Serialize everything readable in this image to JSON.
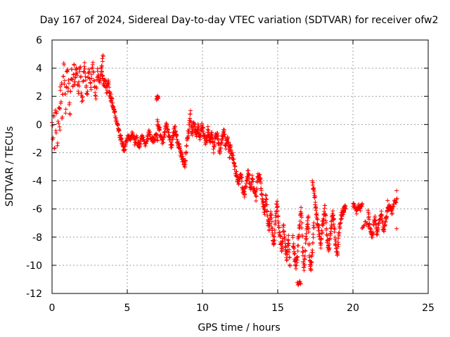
{
  "chart_data": {
    "type": "scatter",
    "title": "Day 167 of 2024, Sidereal Day-to-day VTEC variation (SDTVAR) for receiver ofw2",
    "xlabel": "GPS time / hours",
    "ylabel": "SDTVAR / TECUs",
    "xlim": [
      0,
      25
    ],
    "ylim": [
      -12,
      6
    ],
    "xticks": [
      0,
      5,
      10,
      15,
      20,
      25
    ],
    "yticks": [
      -12,
      -10,
      -8,
      -6,
      -4,
      -2,
      0,
      2,
      4,
      6
    ],
    "xtick_labels": [
      "0",
      "5",
      "10",
      "15",
      "20",
      "25"
    ],
    "ytick_labels": [
      "-12",
      "-10",
      "-8",
      "-6",
      "-4",
      "-2",
      "0",
      "2",
      "4",
      "6"
    ],
    "grid": true,
    "marker": "+",
    "marker_color": "#ff0000",
    "series": [
      {
        "name": "SDTVAR",
        "tracks": [
          {
            "start": 0.0,
            "end": 0.5,
            "step": 0.05,
            "y": [
              0.0,
              -1.0,
              0.5,
              -1.8,
              1.0,
              -0.5,
              0.8,
              -1.5,
              0.2,
              1.2,
              -0.3
            ],
            "spread": 0.4
          },
          {
            "start": 0.5,
            "end": 1.5,
            "step": 0.04,
            "y": [
              1.0,
              2.5,
              1.5,
              3.0,
              0.5,
              2.0,
              3.5,
              4.2,
              3.0,
              2.0,
              1.0,
              2.5,
              3.8,
              4.0,
              2.5,
              3.0,
              1.5,
              0.8,
              2.2,
              3.4,
              4.1,
              3.2,
              2.6,
              3.6,
              4.3,
              3.0
            ],
            "spread": 0.4
          },
          {
            "start": 1.5,
            "end": 3.4,
            "step": 0.04,
            "y": [
              2.8,
              3.5,
              4.2,
              3.0,
              2.2,
              3.8,
              4.0,
              2.0,
              1.5,
              3.2,
              4.3,
              3.6,
              2.8,
              1.8,
              3.4,
              4.1,
              3.0,
              2.5,
              3.9,
              4.4,
              3.2,
              2.6,
              1.7,
              3.0,
              3.8,
              3.5,
              2.9,
              3.3,
              4.0,
              4.6,
              5.1
            ],
            "spread": 0.4
          },
          {
            "start": 3.3,
            "end": 4.8,
            "step": 0.03,
            "y": [
              3.6,
              3.2,
              2.8,
              3.0,
              2.6,
              2.4,
              3.1,
              2.2,
              2.0,
              1.8,
              1.5,
              1.2,
              0.8,
              0.5,
              0.2,
              -0.2,
              -0.5,
              -0.8,
              -1.0,
              -1.3,
              -1.6,
              -1.8
            ],
            "spread": 0.5
          },
          {
            "start": 4.8,
            "end": 7.0,
            "step": 0.04,
            "y": [
              -1.6,
              -1.2,
              -0.8,
              -1.0,
              -0.7,
              -1.3,
              -0.9,
              -1.6,
              -1.1,
              -0.8,
              -1.4,
              -1.0,
              -0.6,
              -0.9,
              -1.2,
              -0.8,
              -1.0
            ],
            "spread": 0.5
          },
          {
            "start": 6.95,
            "end": 7.05,
            "step": 0.025,
            "y": [
              1.8,
              2.0,
              1.9
            ],
            "spread": 0.2
          },
          {
            "start": 7.0,
            "end": 9.3,
            "step": 0.03,
            "y": [
              0.2,
              -0.3,
              -0.8,
              -1.3,
              -0.6,
              0.0,
              -0.5,
              -1.0,
              -1.5,
              -0.8,
              -0.2,
              -0.9,
              -1.4,
              -1.8,
              -2.3,
              -2.6,
              -2.9,
              -1.2,
              -0.5,
              1.0,
              -0.8
            ],
            "spread": 0.5
          },
          {
            "start": 9.3,
            "end": 11.8,
            "step": 0.03,
            "y": [
              -0.5,
              0.3,
              -0.8,
              -0.2,
              -1.0,
              0.0,
              -0.6,
              -1.5,
              -0.3,
              -1.2,
              -0.7,
              -1.8,
              -0.5,
              -1.0,
              -2.0,
              -1.3,
              -0.4,
              -1.6,
              -0.9,
              -2.2
            ],
            "spread": 0.6
          },
          {
            "start": 11.8,
            "end": 13.8,
            "step": 0.03,
            "y": [
              -1.5,
              -2.0,
              -2.6,
              -3.2,
              -3.8,
              -4.2,
              -3.5,
              -4.6,
              -5.0,
              -4.0,
              -3.2,
              -4.5,
              -3.8,
              -4.8,
              -5.2,
              -3.4,
              -4.2
            ],
            "spread": 0.6
          },
          {
            "start": 13.8,
            "end": 15.8,
            "step": 0.025,
            "y": [
              -3.8,
              -4.5,
              -5.5,
              -6.2,
              -5.0,
              -6.8,
              -7.5,
              -6.0,
              -7.8,
              -8.5,
              -6.5,
              -5.6,
              -7.2,
              -8.2,
              -9.0,
              -7.0,
              -8.6,
              -9.5,
              -8.0,
              -9.8
            ],
            "spread": 0.6
          },
          {
            "start": 16.0,
            "end": 17.4,
            "step": 0.025,
            "y": [
              -8.0,
              -9.2,
              -10.0,
              -9.5,
              -8.0,
              -7.0,
              -6.0,
              -9.0,
              -10.3,
              -8.5,
              -7.5,
              -6.5,
              -9.8,
              -10.2,
              -8.8,
              -7.0
            ],
            "spread": 0.7
          },
          {
            "start": 17.3,
            "end": 19.5,
            "step": 0.025,
            "y": [
              -4.0,
              -5.0,
              -6.5,
              -7.5,
              -8.5,
              -7.0,
              -6.0,
              -8.0,
              -9.0,
              -7.2,
              -6.2,
              -8.3,
              -9.2,
              -7.5,
              -6.5,
              -6.0,
              -5.8
            ],
            "spread": 0.6
          },
          {
            "start": 16.3,
            "end": 16.5,
            "step": 0.05,
            "y": [
              -11.2,
              -11.4,
              -11.1,
              -11.3
            ],
            "spread": 0.1
          },
          {
            "start": 20.0,
            "end": 20.6,
            "step": 0.04,
            "y": [
              -5.7,
              -5.9,
              -6.2,
              -5.8,
              -6.0,
              -5.7
            ],
            "spread": 0.3
          },
          {
            "start": 20.6,
            "end": 21.0,
            "step": 0.1,
            "y": [
              -7.3,
              -7.0,
              -7.2
            ],
            "spread": 0.2
          },
          {
            "start": 21.0,
            "end": 22.6,
            "step": 0.03,
            "y": [
              -6.2,
              -7.5,
              -8.0,
              -6.5,
              -7.8,
              -7.0,
              -6.3,
              -7.6,
              -6.8,
              -6.0,
              -5.8,
              -6.2
            ],
            "spread": 0.4
          },
          {
            "start": 22.6,
            "end": 22.9,
            "step": 0.05,
            "y": [
              -6.0,
              -5.8,
              -5.4,
              -5.6,
              -5.3
            ],
            "spread": 0.2
          }
        ],
        "outliers": [
          {
            "x": 22.9,
            "y": -4.7
          },
          {
            "x": 22.9,
            "y": -7.4
          },
          {
            "x": 22.3,
            "y": -5.4
          }
        ]
      }
    ]
  }
}
